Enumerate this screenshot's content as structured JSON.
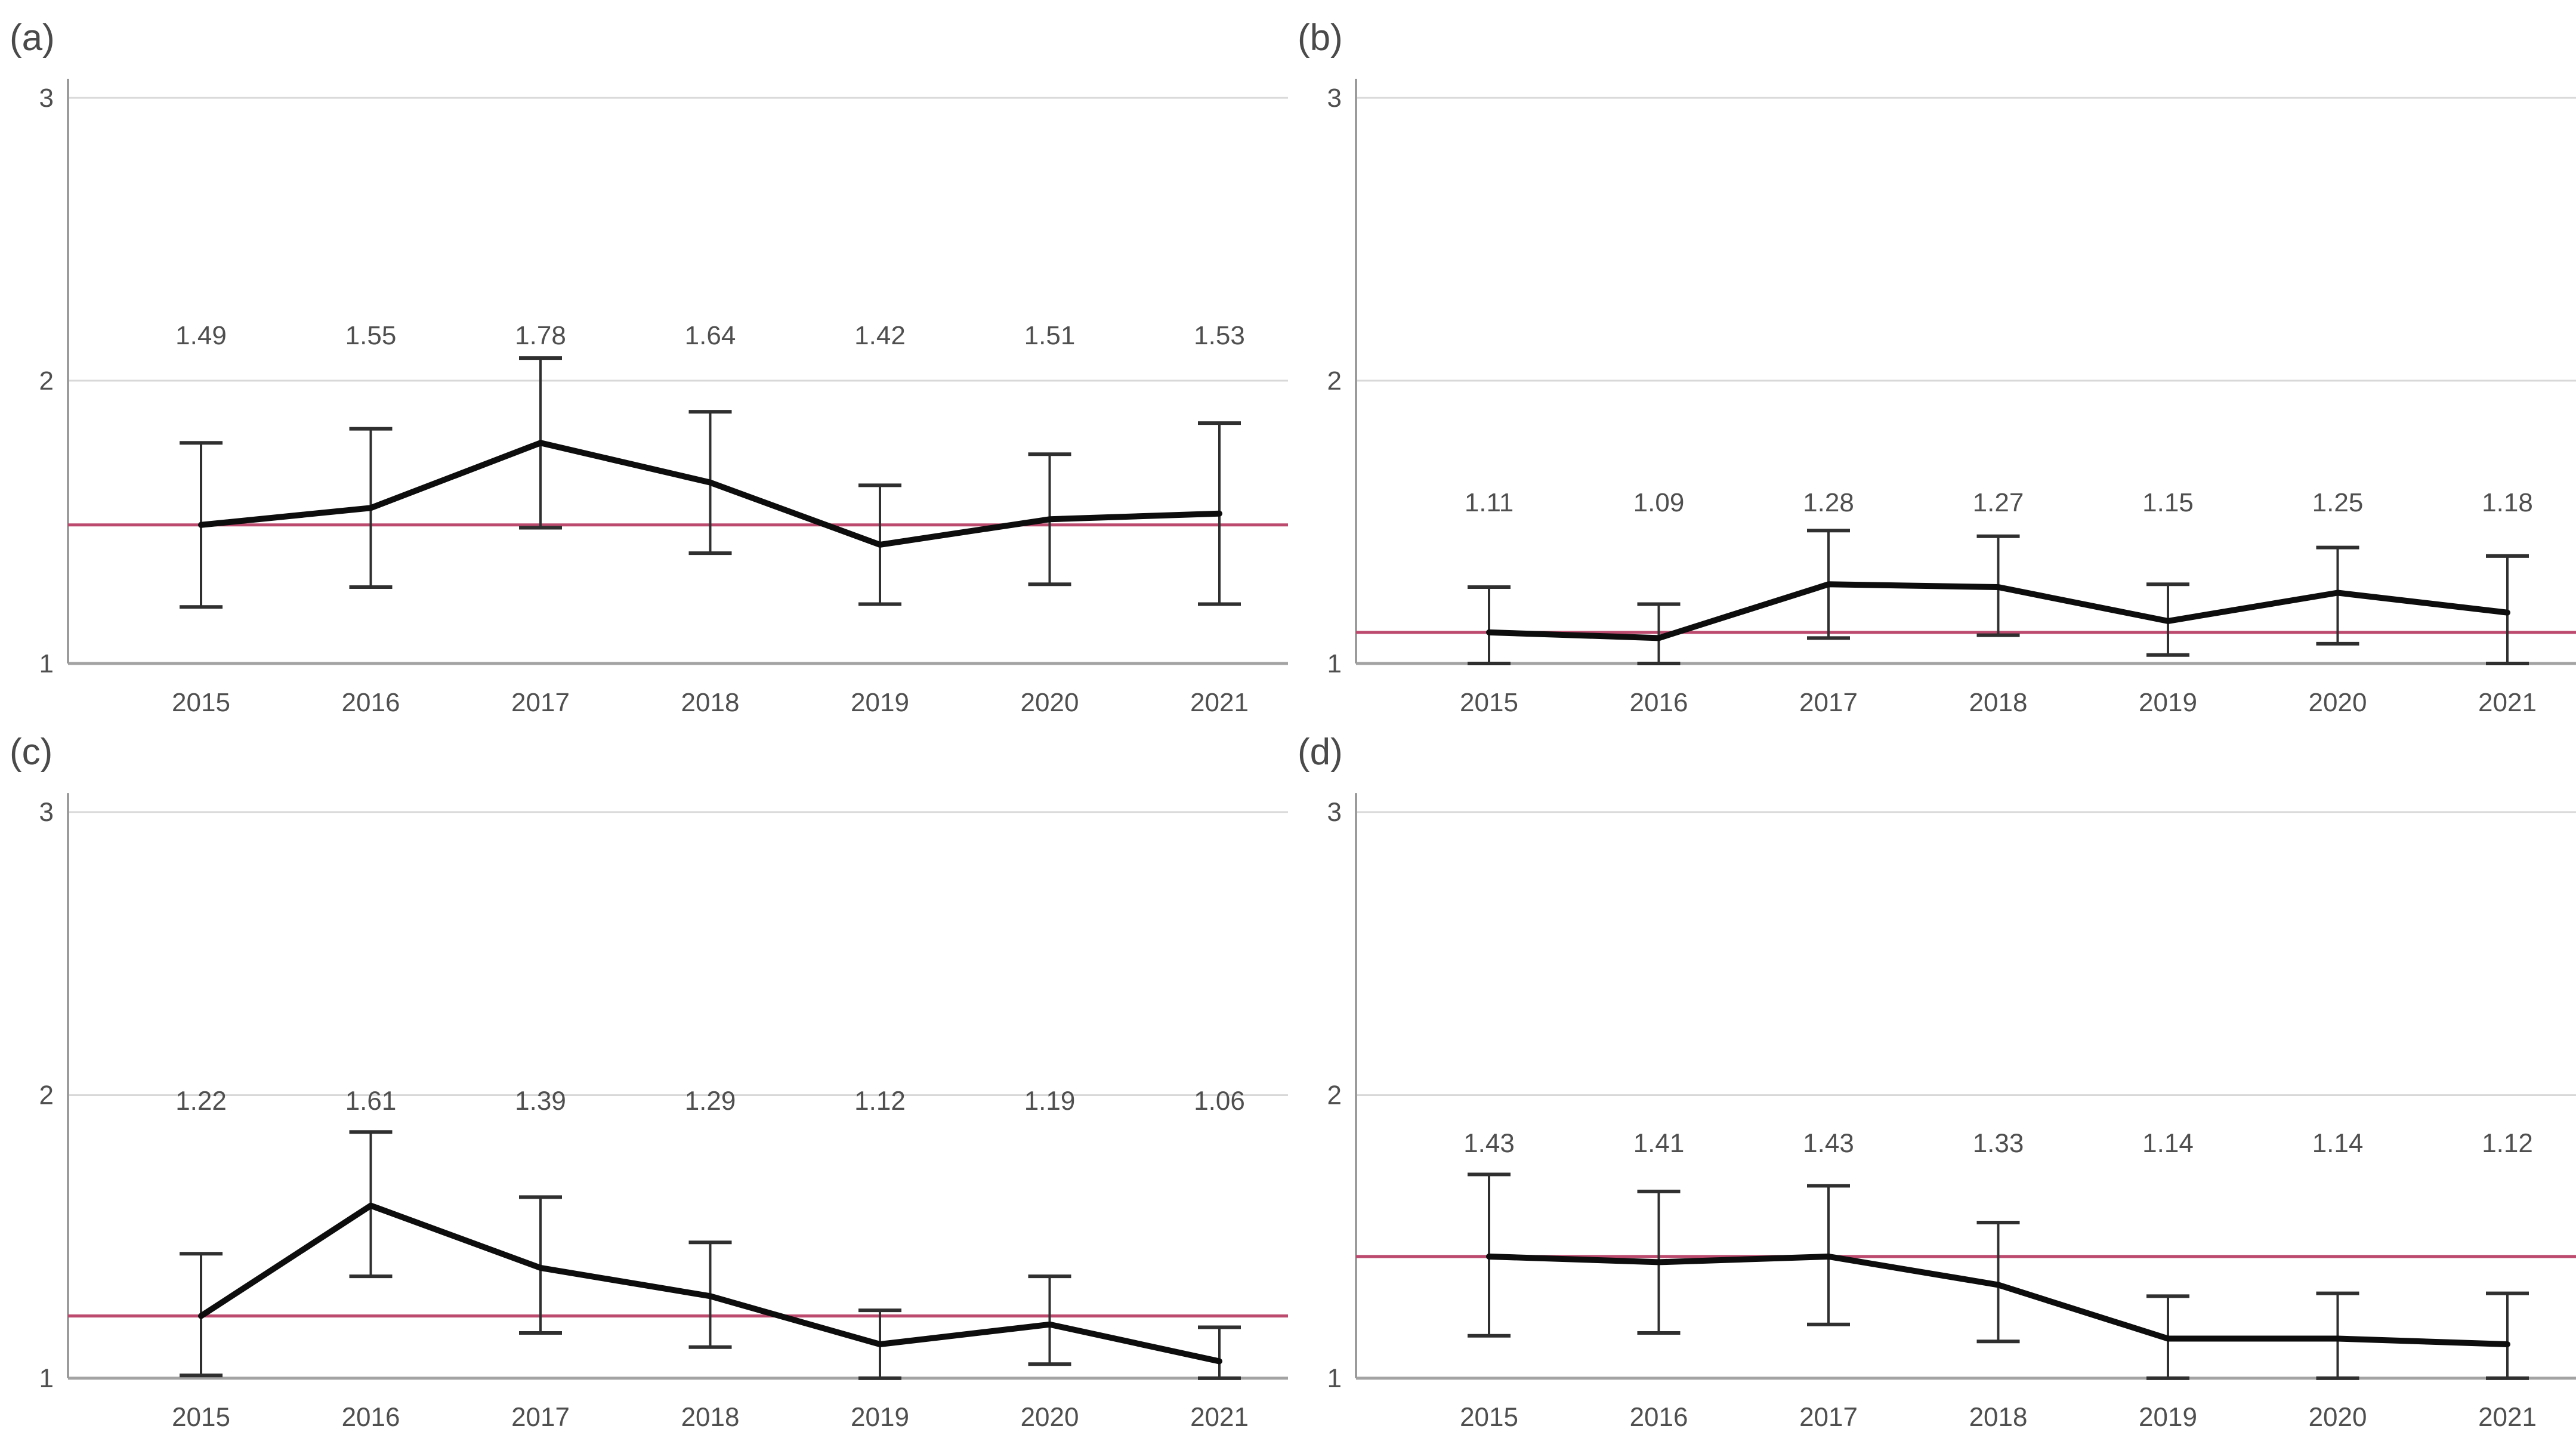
{
  "figure": {
    "background": "#ffffff",
    "colors": {
      "series_line": "#0d0d0d",
      "error_bar": "#2f2f2f",
      "reference_line": "#bc4a6e",
      "gridline": "#d8d8d8",
      "axis_line": "#9b9b9b",
      "baseline": "#a3a3a3",
      "text": "#4f4f4f"
    },
    "layout_hints": {
      "grid": "on",
      "legend": "none",
      "rows": 2,
      "cols": 2
    }
  },
  "chart_data": [
    {
      "type": "line",
      "title": "(a)",
      "x": [
        "2015",
        "2016",
        "2017",
        "2018",
        "2019",
        "2020",
        "2021"
      ],
      "values": [
        1.49,
        1.55,
        1.78,
        1.64,
        1.42,
        1.51,
        1.53
      ],
      "value_labels": [
        "1.49",
        "1.55",
        "1.78",
        "1.64",
        "1.42",
        "1.51",
        "1.53"
      ],
      "error_low": [
        1.2,
        1.27,
        1.48,
        1.39,
        1.21,
        1.28,
        1.21
      ],
      "error_high": [
        1.78,
        1.83,
        2.08,
        1.89,
        1.63,
        1.74,
        1.85
      ],
      "reference_line": 1.49,
      "label_row_y": 2.16,
      "ylim": [
        1,
        3
      ],
      "yticks": [
        "1",
        "2",
        "3"
      ],
      "xlabel": "",
      "ylabel": ""
    },
    {
      "type": "line",
      "title": "(b)",
      "x": [
        "2015",
        "2016",
        "2017",
        "2018",
        "2019",
        "2020",
        "2021"
      ],
      "values": [
        1.11,
        1.09,
        1.28,
        1.27,
        1.15,
        1.25,
        1.18
      ],
      "value_labels": [
        "1.11",
        "1.09",
        "1.28",
        "1.27",
        "1.15",
        "1.25",
        "1.18"
      ],
      "error_low": [
        1.0,
        1.0,
        1.09,
        1.1,
        1.03,
        1.07,
        1.0
      ],
      "error_high": [
        1.27,
        1.21,
        1.47,
        1.45,
        1.28,
        1.41,
        1.38
      ],
      "reference_line": 1.11,
      "label_row_y": 1.57,
      "ylim": [
        1,
        3
      ],
      "yticks": [
        "1",
        "2",
        "3"
      ],
      "xlabel": "",
      "ylabel": ""
    },
    {
      "type": "line",
      "title": "(c)",
      "x": [
        "2015",
        "2016",
        "2017",
        "2018",
        "2019",
        "2020",
        "2021"
      ],
      "values": [
        1.22,
        1.61,
        1.39,
        1.29,
        1.12,
        1.19,
        1.06
      ],
      "value_labels": [
        "1.22",
        "1.61",
        "1.39",
        "1.29",
        "1.12",
        "1.19",
        "1.06"
      ],
      "error_low": [
        1.01,
        1.36,
        1.16,
        1.11,
        1.0,
        1.05,
        1.0
      ],
      "error_high": [
        1.44,
        1.87,
        1.64,
        1.48,
        1.24,
        1.36,
        1.18
      ],
      "reference_line": 1.22,
      "label_row_y": 1.98,
      "ylim": [
        1,
        3
      ],
      "yticks": [
        "1",
        "2",
        "3"
      ],
      "xlabel": "",
      "ylabel": ""
    },
    {
      "type": "line",
      "title": "(d)",
      "x": [
        "2015",
        "2016",
        "2017",
        "2018",
        "2019",
        "2020",
        "2021"
      ],
      "values": [
        1.43,
        1.41,
        1.43,
        1.33,
        1.14,
        1.14,
        1.12
      ],
      "value_labels": [
        "1.43",
        "1.41",
        "1.43",
        "1.33",
        "1.14",
        "1.14",
        "1.12"
      ],
      "error_low": [
        1.15,
        1.16,
        1.19,
        1.13,
        1.0,
        1.0,
        1.0
      ],
      "error_high": [
        1.72,
        1.66,
        1.68,
        1.55,
        1.29,
        1.3,
        1.3
      ],
      "reference_line": 1.43,
      "label_row_y": 1.83,
      "ylim": [
        1,
        3
      ],
      "yticks": [
        "1",
        "2",
        "3"
      ],
      "xlabel": "",
      "ylabel": ""
    }
  ]
}
